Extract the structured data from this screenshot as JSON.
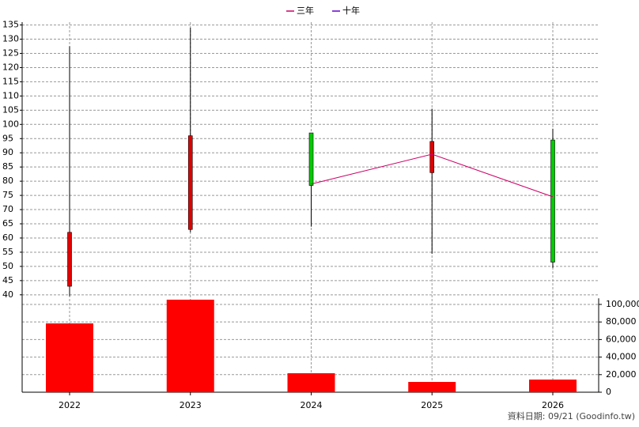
{
  "chart_data": {
    "type": "candlestick",
    "categories": [
      "2022",
      "2023",
      "2024",
      "2025",
      "2026"
    ],
    "ohlc": {
      "open": [
        43,
        63,
        97,
        83,
        94.5
      ],
      "high": [
        127.5,
        134,
        97,
        105.5,
        98.5
      ],
      "low": [
        39.5,
        62,
        64,
        54.5,
        49.5
      ],
      "close": [
        62,
        96,
        78.5,
        94,
        51.5
      ],
      "up_color": "#e00000",
      "down_color": "#00cc00"
    },
    "series": [
      {
        "name": "三年",
        "color": "#cc0066",
        "values": [
          null,
          null,
          79,
          89.5,
          74.5
        ]
      },
      {
        "name": "十年",
        "color": "#6600cc",
        "values": [
          null,
          null,
          null,
          null,
          null
        ]
      }
    ],
    "volume": {
      "values": [
        78400,
        105400,
        21600,
        11700,
        14400
      ],
      "color": "#ff0000",
      "axis": "y2"
    },
    "ylim": [
      38,
      136
    ],
    "yticks": [
      40,
      45,
      50,
      55,
      60,
      65,
      70,
      75,
      80,
      85,
      90,
      95,
      100,
      105,
      110,
      115,
      120,
      125,
      130,
      135
    ],
    "y2lim": [
      0,
      107000
    ],
    "y2ticks": [
      0,
      {
        "value": 20000,
        "label": "20,000"
      },
      {
        "value": 40000,
        "label": "40,000"
      },
      {
        "value": 60000,
        "label": "60,000"
      },
      {
        "value": 80000,
        "label": "80,000"
      },
      {
        "value": 100000,
        "label": "100,000"
      }
    ],
    "grid": true,
    "note": "資料日期: 09/21  (Goodinfo.tw)"
  }
}
